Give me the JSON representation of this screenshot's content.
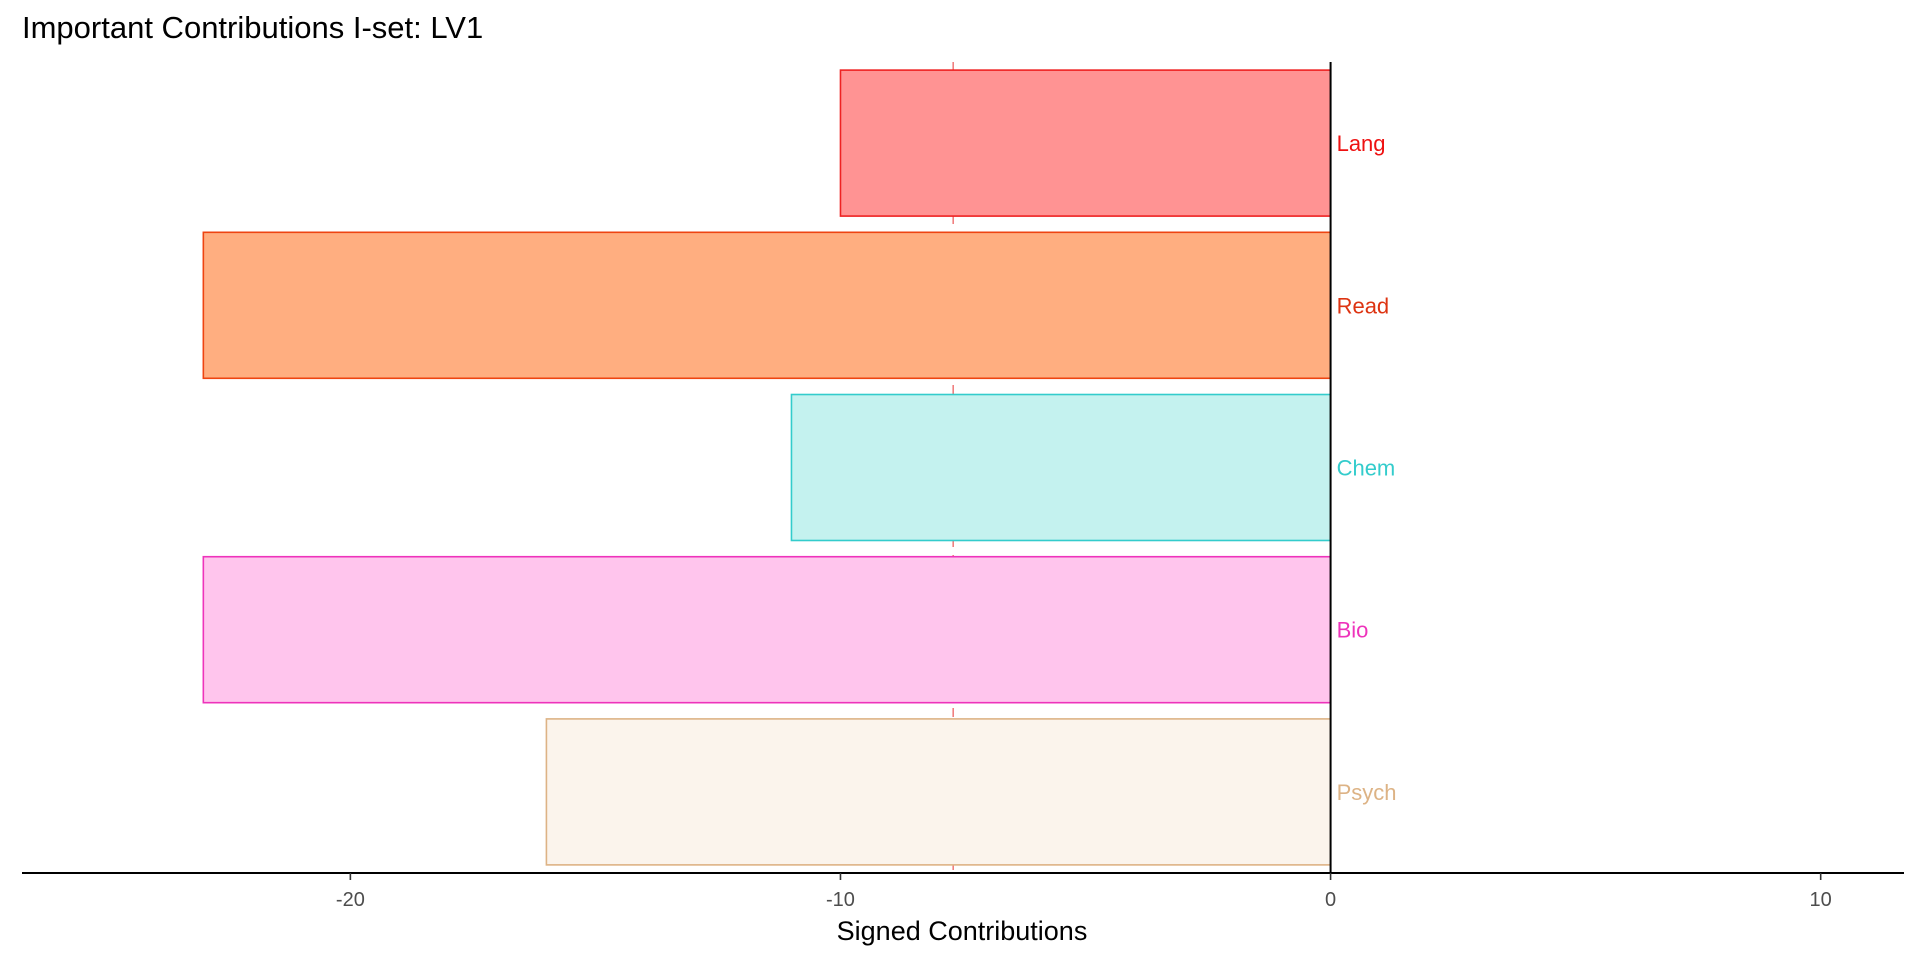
{
  "chart_data": {
    "type": "bar",
    "orientation": "horizontal",
    "title": "Important Contributions I-set: LV1",
    "xlabel": "Signed Contributions",
    "ylabel": "",
    "xlim": [
      -26.7,
      11.7
    ],
    "xticks": [
      -20,
      -10,
      0,
      10
    ],
    "threshold": -7.7,
    "grid": false,
    "legend": "none",
    "categories": [
      "Lang",
      "Read",
      "Chem",
      "Bio",
      "Psych"
    ],
    "values": [
      -10.0,
      -23.0,
      -11.0,
      -23.0,
      -16.0
    ],
    "colors": {
      "fill": [
        "#ff9393",
        "#ffae80",
        "#c4f2ef",
        "#ffc5ed",
        "#fbf4ec"
      ],
      "stroke": [
        "#ee2222",
        "#ee4411",
        "#33cccc",
        "#ee33bb",
        "#ddb385"
      ],
      "label": [
        "#ee1111",
        "#dd3311",
        "#33cccc",
        "#ee33bb",
        "#ddb385"
      ],
      "threshold": "#f08080"
    }
  }
}
